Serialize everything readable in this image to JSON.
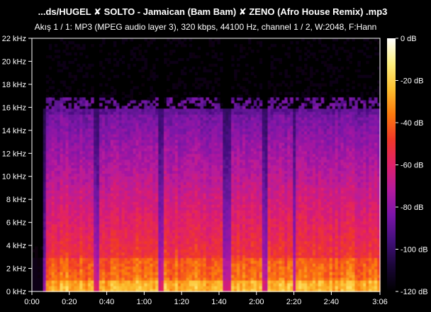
{
  "header": {
    "title": "...ds/HUGEL ✘ SOLTO - Jamaican (Bam Bam) ✘ ZENO (Afro House Remix) .mp3",
    "subtitle": "Akış 1 / 1: MP3 (MPEG audio layer 3), 320 kbps, 44100 Hz, channel 1 / 2, W:2048, F:Hann"
  },
  "chart_data": {
    "type": "heatmap",
    "title": "...ds/HUGEL ✘ SOLTO - Jamaican (Bam Bam) ✘ ZENO (Afro House Remix) .mp3",
    "subtitle": "Akış 1 / 1: MP3 (MPEG audio layer 3), 320 kbps, 44100 Hz, channel 1 / 2, W:2048, F:Hann",
    "x_unit": "seconds",
    "xlim": [
      0,
      186
    ],
    "x_ticks": [
      {
        "value": 0,
        "label": "0:00"
      },
      {
        "value": 20,
        "label": "0:20"
      },
      {
        "value": 40,
        "label": "0:40"
      },
      {
        "value": 60,
        "label": "1:00"
      },
      {
        "value": 80,
        "label": "1:20"
      },
      {
        "value": 100,
        "label": "1:40"
      },
      {
        "value": 120,
        "label": "2:00"
      },
      {
        "value": 140,
        "label": "2:20"
      },
      {
        "value": 160,
        "label": "2:40"
      },
      {
        "value": 186,
        "label": "3:06"
      }
    ],
    "y_unit": "kHz",
    "ylim": [
      0,
      22
    ],
    "y_ticks": [
      {
        "value": 0,
        "label": "0 kHz"
      },
      {
        "value": 2,
        "label": "2 kHz"
      },
      {
        "value": 4,
        "label": "4 kHz"
      },
      {
        "value": 6,
        "label": "6 kHz"
      },
      {
        "value": 8,
        "label": "8 kHz"
      },
      {
        "value": 10,
        "label": "10 kHz"
      },
      {
        "value": 12,
        "label": "12 kHz"
      },
      {
        "value": 14,
        "label": "14 kHz"
      },
      {
        "value": 16,
        "label": "16 kHz"
      },
      {
        "value": 18,
        "label": "18 kHz"
      },
      {
        "value": 20,
        "label": "20 kHz"
      },
      {
        "value": 22,
        "label": "22 kHz"
      }
    ],
    "colorbar": {
      "unit": "dB",
      "range": [
        -120,
        0
      ],
      "ticks": [
        {
          "value": 0,
          "label": "0 dB"
        },
        {
          "value": -20,
          "label": "-20 dB"
        },
        {
          "value": -40,
          "label": "-40 dB"
        },
        {
          "value": -60,
          "label": "-60 dB"
        },
        {
          "value": -80,
          "label": "-80 dB"
        },
        {
          "value": -100,
          "label": "-100 dB"
        },
        {
          "value": -120,
          "label": "-120 dB"
        }
      ],
      "colors": [
        "#000000",
        "#1a0636",
        "#42107a",
        "#7a14a8",
        "#b41a9e",
        "#e0206a",
        "#f03828",
        "#fb7a0e",
        "#fcc030",
        "#fef080",
        "#ffffff"
      ]
    },
    "spectral_cutoff_khz": 16,
    "signal_start_s": 6,
    "quiet_sections_s": [
      [
        33,
        36
      ],
      [
        68,
        71
      ],
      [
        102,
        106
      ],
      [
        123,
        126
      ],
      [
        140,
        141
      ]
    ]
  }
}
